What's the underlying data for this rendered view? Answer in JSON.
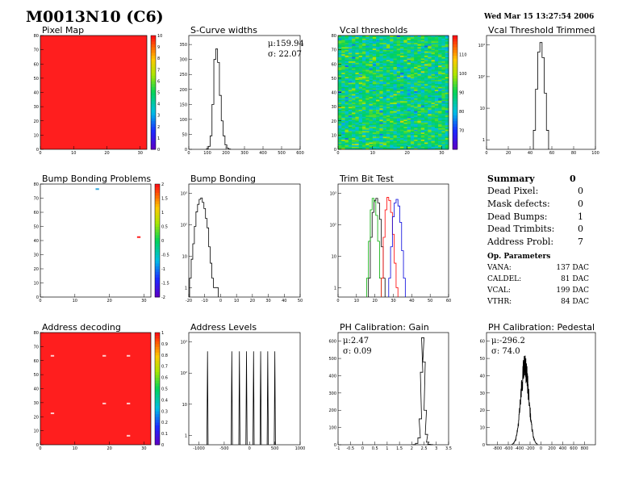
{
  "header": {
    "title": "M0013N10 (C6)",
    "date": "Wed Mar 15 13:27:54 2006"
  },
  "summary": {
    "title": "Summary",
    "total": "0",
    "rows": [
      {
        "label": "Dead Pixel:",
        "value": "0"
      },
      {
        "label": "Mask defects:",
        "value": "0"
      },
      {
        "label": "Dead Bumps:",
        "value": "1"
      },
      {
        "label": "Dead Trimbits:",
        "value": "0"
      },
      {
        "label": "Address Probl:",
        "value": "7"
      }
    ],
    "params_title": "Op. Parameters",
    "params": [
      {
        "label": "VANA:",
        "value": "137 DAC"
      },
      {
        "label": "CALDEL:",
        "value": "81 DAC"
      },
      {
        "label": "VCAL:",
        "value": "199 DAC"
      },
      {
        "label": "VTHR:",
        "value": "84 DAC"
      }
    ]
  },
  "chart_data": [
    {
      "id": "pixel-map",
      "type": "heatmap",
      "title": "Pixel Map",
      "xlim": [
        0,
        32
      ],
      "ylim": [
        0,
        80
      ],
      "xticks": [
        "0",
        "10",
        "20",
        "30"
      ],
      "yticks": [
        "0",
        "10",
        "20",
        "30",
        "40",
        "50",
        "60",
        "70",
        "80"
      ],
      "zlim": [
        0,
        10
      ],
      "zticks": [
        "0",
        "1",
        "2",
        "3",
        "4",
        "5",
        "6",
        "7",
        "8",
        "9",
        "10"
      ],
      "fill": "uniform",
      "value": 10,
      "cell_color": "#ff1e1e"
    },
    {
      "id": "scurve-widths",
      "type": "line",
      "title": "S-Curve widths",
      "xlim": [
        0,
        600
      ],
      "ylim": [
        0,
        380
      ],
      "xticks": [
        "0",
        "100",
        "200",
        "300",
        "400",
        "500",
        "600"
      ],
      "yticks": [
        "0",
        "50",
        "100",
        "150",
        "200",
        "250",
        "300",
        "350"
      ],
      "stats": {
        "mean": "μ:159.94",
        "sigma": "σ: 22.07"
      },
      "x": [
        100,
        110,
        120,
        130,
        140,
        150,
        160,
        170,
        180,
        190,
        200,
        210,
        220
      ],
      "y": [
        2,
        10,
        45,
        150,
        300,
        335,
        290,
        180,
        95,
        45,
        15,
        4,
        1
      ]
    },
    {
      "id": "vcal-thresholds",
      "type": "heatmap",
      "title": "Vcal thresholds",
      "xlim": [
        0,
        32
      ],
      "ylim": [
        0,
        80
      ],
      "xticks": [
        "0",
        "10",
        "20",
        "30"
      ],
      "yticks": [
        "0",
        "10",
        "20",
        "30",
        "40",
        "50",
        "60",
        "70",
        "80"
      ],
      "zlim": [
        60,
        120
      ],
      "zticks": [
        "70",
        "80",
        "90",
        "100",
        "110"
      ],
      "fill": "noise",
      "mean": 88,
      "spread": 11
    },
    {
      "id": "vcal-threshold-trimmed",
      "type": "line",
      "title": "Vcal Threshold Trimmed",
      "xlim": [
        0,
        100
      ],
      "ylog": true,
      "ylim": [
        0.5,
        2000
      ],
      "xticks": [
        "0",
        "20",
        "40",
        "60",
        "80",
        "100"
      ],
      "ydecades": [
        "1",
        "10",
        "10²",
        "10³"
      ],
      "x": [
        44,
        46,
        48,
        50,
        52,
        54,
        56
      ],
      "y": [
        2,
        40,
        600,
        1200,
        400,
        30,
        2
      ]
    },
    {
      "id": "bump-bonding-problems",
      "type": "heatmap",
      "title": "Bump Bonding Problems",
      "xlim": [
        0,
        32
      ],
      "ylim": [
        0,
        80
      ],
      "xticks": [
        "0",
        "10",
        "20",
        "30"
      ],
      "yticks": [
        "0",
        "10",
        "20",
        "30",
        "40",
        "50",
        "60",
        "70",
        "80"
      ],
      "zlim": [
        -2,
        2
      ],
      "zticks": [
        "-2",
        "-1.5",
        "-1",
        "-0.5",
        "0",
        "0.5",
        "1",
        "1.5",
        "2"
      ],
      "fill": "points",
      "points": [
        {
          "x": 16,
          "y": 76,
          "color": "#33aadd"
        },
        {
          "x": 28,
          "y": 42,
          "color": "#ff1e1e"
        }
      ]
    },
    {
      "id": "bump-bonding",
      "type": "line",
      "title": "Bump Bonding",
      "xlim": [
        -20,
        50
      ],
      "ylog": true,
      "ylim": [
        0.5,
        2000
      ],
      "xticks": [
        "-20",
        "-10",
        "0",
        "10",
        "20",
        "30",
        "40",
        "50"
      ],
      "ydecades": [
        "1",
        "10",
        "10²",
        "10³"
      ],
      "x": [
        -19,
        -18,
        -17,
        -16,
        -15,
        -14,
        -13,
        -12,
        -11,
        -10,
        -9,
        -8,
        -7,
        -6,
        -5,
        -4,
        -3,
        -2
      ],
      "y": [
        2,
        8,
        25,
        90,
        260,
        450,
        650,
        720,
        520,
        330,
        160,
        80,
        20,
        6,
        2,
        1,
        1,
        1
      ]
    },
    {
      "id": "trim-bit-test",
      "type": "line",
      "title": "Trim Bit Test",
      "xlim": [
        0,
        60
      ],
      "ylog": true,
      "ylim": [
        0.5,
        2000
      ],
      "xticks": [
        "0",
        "10",
        "20",
        "30",
        "40",
        "50",
        "60"
      ],
      "ydecades": [
        "1",
        "10",
        "10²",
        "10³"
      ],
      "series": [
        {
          "color": "#000000",
          "x": [
            17,
            18,
            19,
            20,
            21,
            22,
            23,
            24,
            25
          ],
          "y": [
            2,
            40,
            250,
            600,
            700,
            500,
            150,
            20,
            2
          ]
        },
        {
          "color": "#00aa00",
          "x": [
            16,
            17,
            18,
            19,
            20,
            21,
            22,
            23
          ],
          "y": [
            2,
            30,
            300,
            700,
            550,
            200,
            30,
            2
          ]
        },
        {
          "color": "#ff0000",
          "x": [
            24,
            25,
            26,
            27,
            28,
            29,
            30,
            31,
            32
          ],
          "y": [
            2,
            40,
            300,
            750,
            600,
            250,
            50,
            6,
            1
          ]
        },
        {
          "color": "#0000dd",
          "x": [
            28,
            29,
            30,
            31,
            32,
            33,
            34,
            35,
            36
          ],
          "y": [
            2,
            20,
            180,
            500,
            650,
            400,
            120,
            15,
            2
          ]
        }
      ]
    },
    {
      "id": "address-decoding",
      "type": "heatmap",
      "title": "Address decoding",
      "xlim": [
        0,
        32
      ],
      "ylim": [
        0,
        80
      ],
      "xticks": [
        "0",
        "10",
        "20",
        "30"
      ],
      "yticks": [
        "0",
        "10",
        "20",
        "30",
        "40",
        "50",
        "60",
        "70",
        "80"
      ],
      "zlim": [
        0,
        1
      ],
      "zticks": [
        "0",
        "0.1",
        "0.2",
        "0.3",
        "0.4",
        "0.5",
        "0.6",
        "0.7",
        "0.8",
        "0.9",
        "1"
      ],
      "fill": "uniform",
      "value": 1,
      "cell_color": "#ff1e1e",
      "points": [
        {
          "x": 3,
          "y": 63,
          "color": "#ffcccc"
        },
        {
          "x": 18,
          "y": 63,
          "color": "#ffcccc"
        },
        {
          "x": 25,
          "y": 63,
          "color": "#ffcccc"
        },
        {
          "x": 3,
          "y": 22,
          "color": "#ffcccc"
        },
        {
          "x": 18,
          "y": 29,
          "color": "#ffcccc"
        },
        {
          "x": 25,
          "y": 29,
          "color": "#ffcccc"
        },
        {
          "x": 25,
          "y": 6,
          "color": "#ffcccc"
        }
      ]
    },
    {
      "id": "address-levels",
      "type": "line",
      "title": "Address Levels",
      "xlim": [
        -1200,
        1000
      ],
      "ylog": true,
      "ylim": [
        0.5,
        2000
      ],
      "xticks": [
        "-1000",
        "-500",
        "0",
        "500",
        "1000"
      ],
      "ydecades": [
        "1",
        "10",
        "10²",
        "10³"
      ],
      "peaks": [
        -830,
        -350,
        -200,
        -60,
        80,
        220,
        360,
        500
      ],
      "peak_height": 500
    },
    {
      "id": "ph-gain",
      "type": "line",
      "title": "PH Calibration: Gain",
      "xlim": [
        -1,
        3.5
      ],
      "ylim": [
        0,
        650
      ],
      "xticks": [
        "-1",
        "-0.5",
        "0",
        "0.5",
        "1",
        "1.5",
        "2",
        "2.5",
        "3",
        "3.5"
      ],
      "yticks": [
        "0",
        "100",
        "200",
        "300",
        "400",
        "500",
        "600"
      ],
      "stats": {
        "mean": "μ:2.47",
        "sigma": "σ: 0.09"
      },
      "x": [
        2.1,
        2.2,
        2.3,
        2.35,
        2.4,
        2.45,
        2.5,
        2.55,
        2.6,
        2.65,
        2.7,
        2.8
      ],
      "y": [
        1,
        8,
        40,
        150,
        420,
        620,
        480,
        200,
        60,
        15,
        3,
        1
      ]
    },
    {
      "id": "ph-pedestal",
      "type": "line",
      "title": "PH Calibration: Pedestal",
      "xlim": [
        -1000,
        1000
      ],
      "ylim": [
        0,
        65
      ],
      "xticks": [
        "-800",
        "-600",
        "-400",
        "-200",
        "0",
        "200",
        "400",
        "600",
        "800"
      ],
      "yticks": [
        "0",
        "10",
        "20",
        "30",
        "40",
        "50",
        "60"
      ],
      "stats": {
        "mean": "μ:-296.2",
        "sigma": "σ: 74.0"
      },
      "center": -296.2,
      "width": 74.0,
      "peak": 45
    }
  ]
}
